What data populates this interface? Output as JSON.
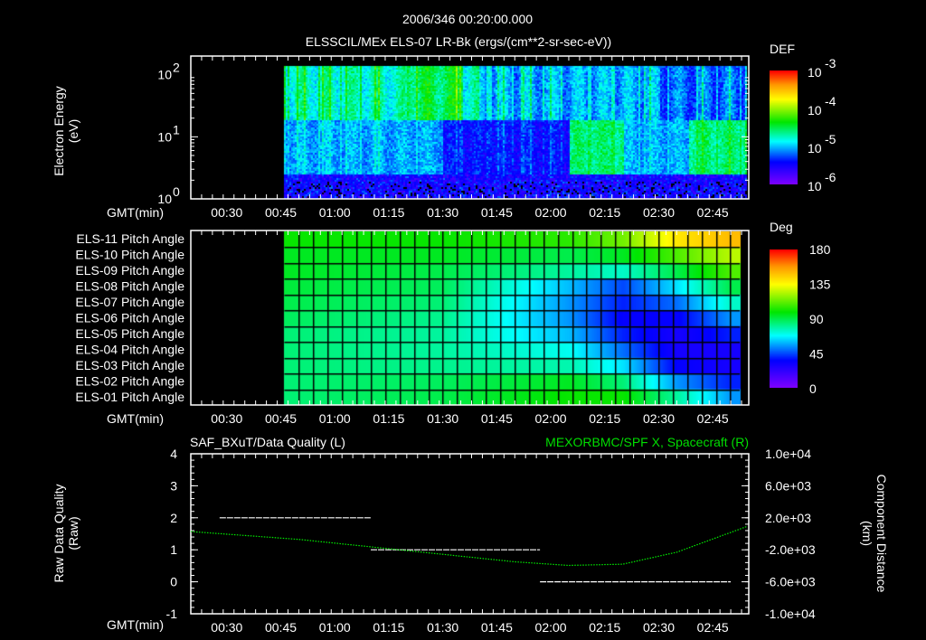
{
  "title": "2006/346 00:20:00.000",
  "chart_data": [
    {
      "type": "heatmap",
      "title": "ELSSCIL/MEx ELS-07 LR-Bk  (ergs/(cm**2-sr-sec-eV))",
      "ylabel": [
        "Electron Energy",
        "(eV)"
      ],
      "xlabel": "GMT(min)",
      "xlim_min": [
        20,
        175
      ],
      "data_start_min": 46,
      "ylim": [
        1,
        200
      ],
      "yscale": "log",
      "ytick_labels": [
        "10",
        "10",
        "10"
      ],
      "ytick_exps": [
        "0",
        "1",
        "2"
      ],
      "xtick_labels": [
        "00:30",
        "00:45",
        "01:00",
        "01:15",
        "01:30",
        "01:45",
        "02:00",
        "02:15",
        "02:30",
        "02:45"
      ],
      "colorbar": {
        "label": "DEF",
        "range_log": [
          -6,
          -3
        ],
        "tick_base": [
          "10",
          "10",
          "10",
          "10"
        ],
        "tick_exps": [
          "-6",
          "-5",
          "-4",
          "-3"
        ]
      }
    },
    {
      "type": "heatmap",
      "xlabel": "GMT(min)",
      "xtick_labels": [
        "00:30",
        "00:45",
        "01:00",
        "01:15",
        "01:30",
        "01:45",
        "02:00",
        "02:15",
        "02:30",
        "02:45"
      ],
      "rows": [
        "ELS-11 Pitch Angle",
        "ELS-10 Pitch Angle",
        "ELS-09 Pitch Angle",
        "ELS-08 Pitch Angle",
        "ELS-07 Pitch Angle",
        "ELS-06 Pitch Angle",
        "ELS-05 Pitch Angle",
        "ELS-04 Pitch Angle",
        "ELS-03 Pitch Angle",
        "ELS-02 Pitch Angle",
        "ELS-01 Pitch Angle"
      ],
      "key_times_min": [
        46,
        90,
        125,
        140,
        155,
        170
      ],
      "values_deg": [
        [
          100,
          100,
          105,
          115,
          140,
          150
        ],
        [
          95,
          95,
          90,
          95,
          110,
          125
        ],
        [
          95,
          90,
          80,
          75,
          90,
          110
        ],
        [
          92,
          88,
          60,
          45,
          65,
          90
        ],
        [
          90,
          85,
          55,
          40,
          50,
          75
        ],
        [
          88,
          82,
          55,
          35,
          35,
          55
        ],
        [
          85,
          80,
          60,
          40,
          30,
          40
        ],
        [
          85,
          80,
          70,
          50,
          30,
          30
        ],
        [
          85,
          82,
          78,
          65,
          35,
          30
        ],
        [
          85,
          88,
          95,
          85,
          55,
          40
        ],
        [
          85,
          90,
          100,
          100,
          80,
          55
        ]
      ],
      "data_range_min": [
        46,
        170
      ],
      "colorbar": {
        "label": "Deg",
        "range": [
          0,
          180
        ],
        "tick_labels": [
          "0",
          "45",
          "90",
          "135",
          "180"
        ]
      }
    },
    {
      "type": "line",
      "title_left": "SAF_BXuT/Data Quality (L)",
      "title_right": "MEXORBMC/SPF X, Spacecraft (R)",
      "ylabel_left": [
        "Raw Data Quality",
        "(Raw)"
      ],
      "ylabel_right": [
        "Component Distance",
        "(km)"
      ],
      "xlabel": "GMT(min)",
      "xtick_labels": [
        "00:30",
        "00:45",
        "01:00",
        "01:15",
        "01:30",
        "01:45",
        "02:00",
        "02:15",
        "02:30",
        "02:45"
      ],
      "ylim_left": [
        -1,
        4
      ],
      "ytick_left": [
        "-1",
        "0",
        "1",
        "2",
        "3",
        "4"
      ],
      "ylim_right": [
        -10000,
        10000
      ],
      "ytick_right": [
        "-1.0e+04",
        "-6.0e+03",
        "-2.0e+03",
        "2.0e+03",
        "6.0e+03",
        "1.0e+04"
      ],
      "series": [
        {
          "name": "Data Quality",
          "color": "#ffffff",
          "segments": [
            [
              28,
              70,
              2
            ],
            [
              70,
              117,
              1
            ],
            [
              117,
              170,
              0
            ]
          ]
        },
        {
          "name": "SPF X",
          "color": "#00ee00",
          "x_min": [
            20,
            50,
            80,
            110,
            125,
            140,
            155,
            175
          ],
          "y_km": [
            280,
            -700,
            -2100,
            -3500,
            -3950,
            -3800,
            -2300,
            1000
          ]
        }
      ]
    }
  ]
}
